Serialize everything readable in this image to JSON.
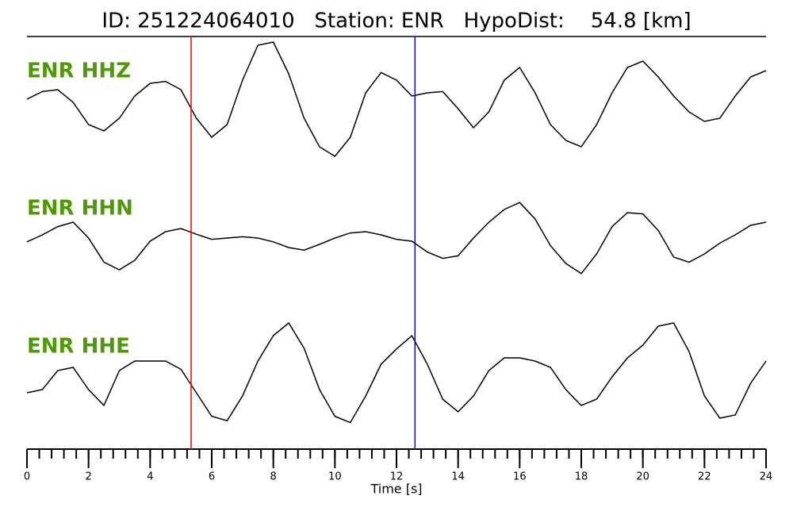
{
  "chart_data": {
    "type": "line",
    "title": "ID: 251224064010   Station: ENR   HypoDist:    54.8 [km]",
    "xlabel": "Time [s]",
    "xlim": [
      0,
      24
    ],
    "xticks": [
      0,
      2,
      4,
      6,
      8,
      10,
      12,
      14,
      16,
      18,
      20,
      22,
      24
    ],
    "xminorticks": [
      0,
      0.4,
      0.8,
      1.2,
      1.6,
      2,
      2.4,
      2.8,
      3.2,
      3.6,
      4,
      4.4,
      4.8,
      5.2,
      5.6,
      6,
      6.4,
      6.8,
      7.2,
      7.6,
      8,
      8.4,
      8.8,
      9.2,
      9.6,
      10,
      10.4,
      10.8,
      11.2,
      11.6,
      12,
      12.4,
      12.8,
      13.2,
      13.6,
      14,
      14.4,
      14.8,
      15.2,
      15.6,
      16,
      16.4,
      16.8,
      17.2,
      17.6,
      18,
      18.4,
      18.8,
      19.2,
      19.6,
      20,
      20.4,
      20.8,
      21.2,
      21.6,
      22,
      22.4,
      22.8,
      23.2,
      23.6,
      24
    ],
    "ylim": [
      -1,
      1
    ],
    "label_color": "#4e9a06",
    "x": [
      0,
      0.5,
      1,
      1.5,
      2,
      2.5,
      3,
      3.5,
      4,
      4.5,
      5,
      5.5,
      6,
      6.5,
      7,
      7.5,
      8,
      8.5,
      9,
      9.5,
      10,
      10.5,
      11,
      11.5,
      12,
      12.5,
      13,
      13.5,
      14,
      14.5,
      15,
      15.5,
      16,
      16.5,
      17,
      17.5,
      18,
      18.5,
      19,
      19.5,
      20,
      20.5,
      21,
      21.5,
      22,
      22.5,
      23,
      23.5,
      24
    ],
    "series": [
      {
        "name": "ENR HHZ",
        "color": "#000000",
        "values": [
          0,
          0.12,
          0.15,
          -0.05,
          -0.4,
          -0.5,
          -0.3,
          0.05,
          0.25,
          0.28,
          0.15,
          -0.3,
          -0.6,
          -0.4,
          0.3,
          0.85,
          0.9,
          0.4,
          -0.3,
          -0.75,
          -0.9,
          -0.6,
          0.1,
          0.42,
          0.3,
          0.05,
          0.1,
          0.12,
          -0.15,
          -0.45,
          -0.2,
          0.3,
          0.5,
          0.1,
          -0.4,
          -0.65,
          -0.75,
          -0.4,
          0.1,
          0.5,
          0.6,
          0.35,
          0.05,
          -0.2,
          -0.35,
          -0.3,
          0.05,
          0.35,
          0.45
        ]
      },
      {
        "name": "ENR HHN",
        "color": "#000000",
        "values": [
          -0.06,
          0.05,
          0.18,
          0.25,
          0,
          -0.38,
          -0.5,
          -0.35,
          -0.05,
          0.1,
          0.15,
          0.06,
          -0.02,
          0,
          0.02,
          0,
          -0.06,
          -0.15,
          -0.19,
          -0.1,
          0,
          0.08,
          0.1,
          0.05,
          -0.02,
          -0.05,
          -0.22,
          -0.32,
          -0.28,
          0,
          0.25,
          0.45,
          0.56,
          0.3,
          -0.12,
          -0.4,
          -0.56,
          -0.25,
          0.18,
          0.4,
          0.38,
          0.12,
          -0.3,
          -0.38,
          -0.25,
          -0.08,
          0.05,
          0.2,
          0.25
        ]
      },
      {
        "name": "ENR HHE",
        "color": "#000000",
        "values": [
          -0.25,
          -0.2,
          0.1,
          0.15,
          -0.2,
          -0.45,
          0.1,
          0.25,
          0.25,
          0.25,
          0.12,
          -0.25,
          -0.62,
          -0.69,
          -0.3,
          0.25,
          0.65,
          0.85,
          0.45,
          -0.2,
          -0.62,
          -0.72,
          -0.3,
          0.2,
          0.44,
          0.65,
          0.2,
          -0.35,
          -0.55,
          -0.3,
          0.1,
          0.3,
          0.3,
          0.25,
          0.15,
          -0.2,
          -0.45,
          -0.35,
          0,
          0.3,
          0.5,
          0.8,
          0.85,
          0.4,
          -0.3,
          -0.65,
          -0.6,
          -0.1,
          0.25
        ]
      }
    ],
    "markers": [
      {
        "x": 5.33,
        "color": "#ff0000"
      },
      {
        "x": 12.6,
        "color": "#0000ff"
      }
    ]
  }
}
